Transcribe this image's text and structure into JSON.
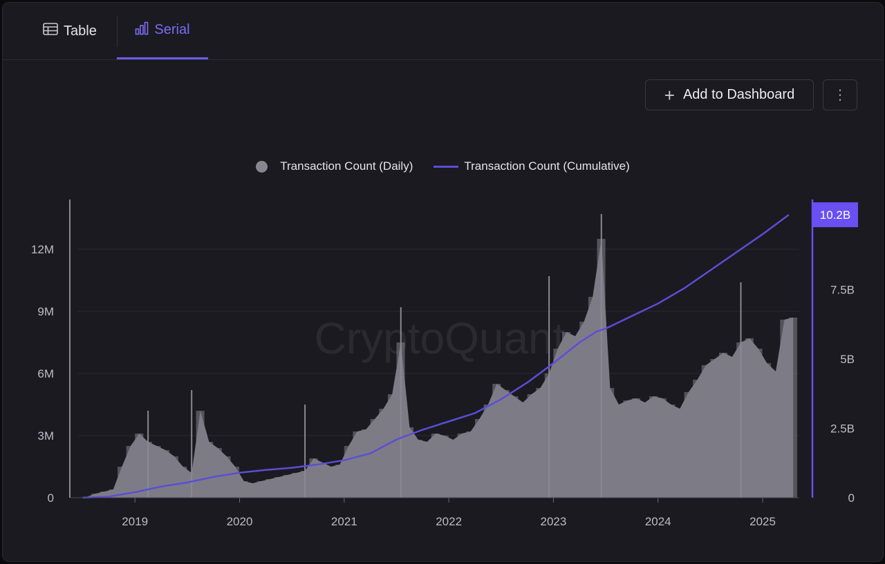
{
  "tabs": [
    {
      "label": "Table",
      "icon": "table-icon",
      "active": false
    },
    {
      "label": "Serial",
      "icon": "bar-chart-icon",
      "active": true
    }
  ],
  "toolbar": {
    "add_label": "Add to Dashboard"
  },
  "watermark": "CryptoQuant",
  "colors": {
    "accent": "#6c5cf0",
    "bar": "#7d7c86",
    "line": "#5b4ed6",
    "badge": "#6a4ff2"
  },
  "chart_data": {
    "type": "bar",
    "legend": [
      "Transaction Count (Daily)",
      "Transaction Count (Cumulative)"
    ],
    "x_ticks": [
      "2019",
      "2020",
      "2021",
      "2022",
      "2023",
      "2024",
      "2025"
    ],
    "y_left_ticks": [
      "0",
      "3M",
      "6M",
      "9M",
      "12M"
    ],
    "y_right_ticks": [
      "0",
      "2.5B",
      "5B",
      "7.5B"
    ],
    "y_left_lim": [
      0,
      14400000
    ],
    "y_right_lim": [
      0,
      10750000000
    ],
    "last_value_label": "10.2B",
    "series": [
      {
        "name": "Transaction Count (Daily)",
        "axis": "left",
        "style": "bar",
        "x": [
          "2018-07",
          "2018-08",
          "2018-09",
          "2018-10",
          "2018-11",
          "2018-12",
          "2019-01",
          "2019-02",
          "2019-03",
          "2019-04",
          "2019-05",
          "2019-06",
          "2019-07",
          "2019-08",
          "2019-09",
          "2019-10",
          "2019-11",
          "2019-12",
          "2020-01",
          "2020-02",
          "2020-03",
          "2020-04",
          "2020-05",
          "2020-06",
          "2020-07",
          "2020-08",
          "2020-09",
          "2020-10",
          "2020-11",
          "2020-12",
          "2021-01",
          "2021-02",
          "2021-03",
          "2021-04",
          "2021-05",
          "2021-06",
          "2021-07",
          "2021-08",
          "2021-09",
          "2021-10",
          "2021-11",
          "2021-12",
          "2022-01",
          "2022-02",
          "2022-03",
          "2022-04",
          "2022-05",
          "2022-06",
          "2022-07",
          "2022-08",
          "2022-09",
          "2022-10",
          "2022-11",
          "2022-12",
          "2023-01",
          "2023-02",
          "2023-03",
          "2023-04",
          "2023-05",
          "2023-06",
          "2023-07",
          "2023-08",
          "2023-09",
          "2023-10",
          "2023-11",
          "2023-12",
          "2024-01",
          "2024-02",
          "2024-03",
          "2024-04",
          "2024-05",
          "2024-06",
          "2024-07",
          "2024-08",
          "2024-09",
          "2024-10",
          "2024-11",
          "2024-12",
          "2025-01",
          "2025-02",
          "2025-03",
          "2025-04"
        ],
        "values": [
          50000,
          200000,
          300000,
          400000,
          1500000,
          2500000,
          3100000,
          2700000,
          2500000,
          2300000,
          2000000,
          1500000,
          1200000,
          4200000,
          2700000,
          2400000,
          2000000,
          1500000,
          800000,
          700000,
          800000,
          900000,
          1000000,
          1100000,
          1200000,
          1300000,
          1900000,
          1700000,
          1500000,
          1600000,
          2500000,
          3200000,
          3300000,
          3800000,
          4300000,
          5000000,
          7500000,
          3400000,
          2800000,
          2700000,
          3100000,
          3000000,
          2800000,
          3100000,
          3200000,
          3800000,
          4500000,
          5500000,
          5200000,
          4900000,
          4600000,
          5000000,
          5300000,
          6000000,
          7200000,
          8000000,
          7800000,
          8500000,
          9700000,
          12500000,
          5300000,
          4500000,
          4700000,
          4800000,
          4600000,
          4900000,
          4800000,
          4500000,
          4300000,
          5100000,
          5700000,
          6400000,
          6700000,
          7000000,
          6800000,
          7500000,
          7700000,
          7200000,
          6500000,
          6100000,
          8600000,
          8700000
        ],
        "peaks": [
          {
            "x": "2019-02",
            "value": 4200000
          },
          {
            "x": "2019-07",
            "value": 5200000
          },
          {
            "x": "2020-08",
            "value": 4500000
          },
          {
            "x": "2021-07",
            "value": 9200000
          },
          {
            "x": "2022-12",
            "value": 10700000
          },
          {
            "x": "2023-06",
            "value": 13700000
          },
          {
            "x": "2024-10",
            "value": 10400000
          }
        ]
      },
      {
        "name": "Transaction Count (Cumulative)",
        "axis": "right",
        "style": "line",
        "x": [
          "2018-07",
          "2018-10",
          "2019-01",
          "2019-04",
          "2019-07",
          "2019-10",
          "2020-01",
          "2020-04",
          "2020-07",
          "2020-10",
          "2021-01",
          "2021-04",
          "2021-07",
          "2021-10",
          "2022-01",
          "2022-04",
          "2022-07",
          "2022-10",
          "2023-01",
          "2023-04",
          "2023-06",
          "2023-07",
          "2023-10",
          "2024-01",
          "2024-04",
          "2024-07",
          "2024-10",
          "2025-01",
          "2025-04"
        ],
        "values": [
          0,
          40000000,
          200000000,
          400000000,
          550000000,
          750000000,
          900000000,
          1000000000,
          1080000000,
          1200000000,
          1350000000,
          1600000000,
          2100000000,
          2450000000,
          2750000000,
          3050000000,
          3550000000,
          4150000000,
          4850000000,
          5600000000,
          6000000000,
          6100000000,
          6550000000,
          7000000000,
          7550000000,
          8200000000,
          8850000000,
          9500000000,
          10200000000
        ]
      }
    ]
  }
}
